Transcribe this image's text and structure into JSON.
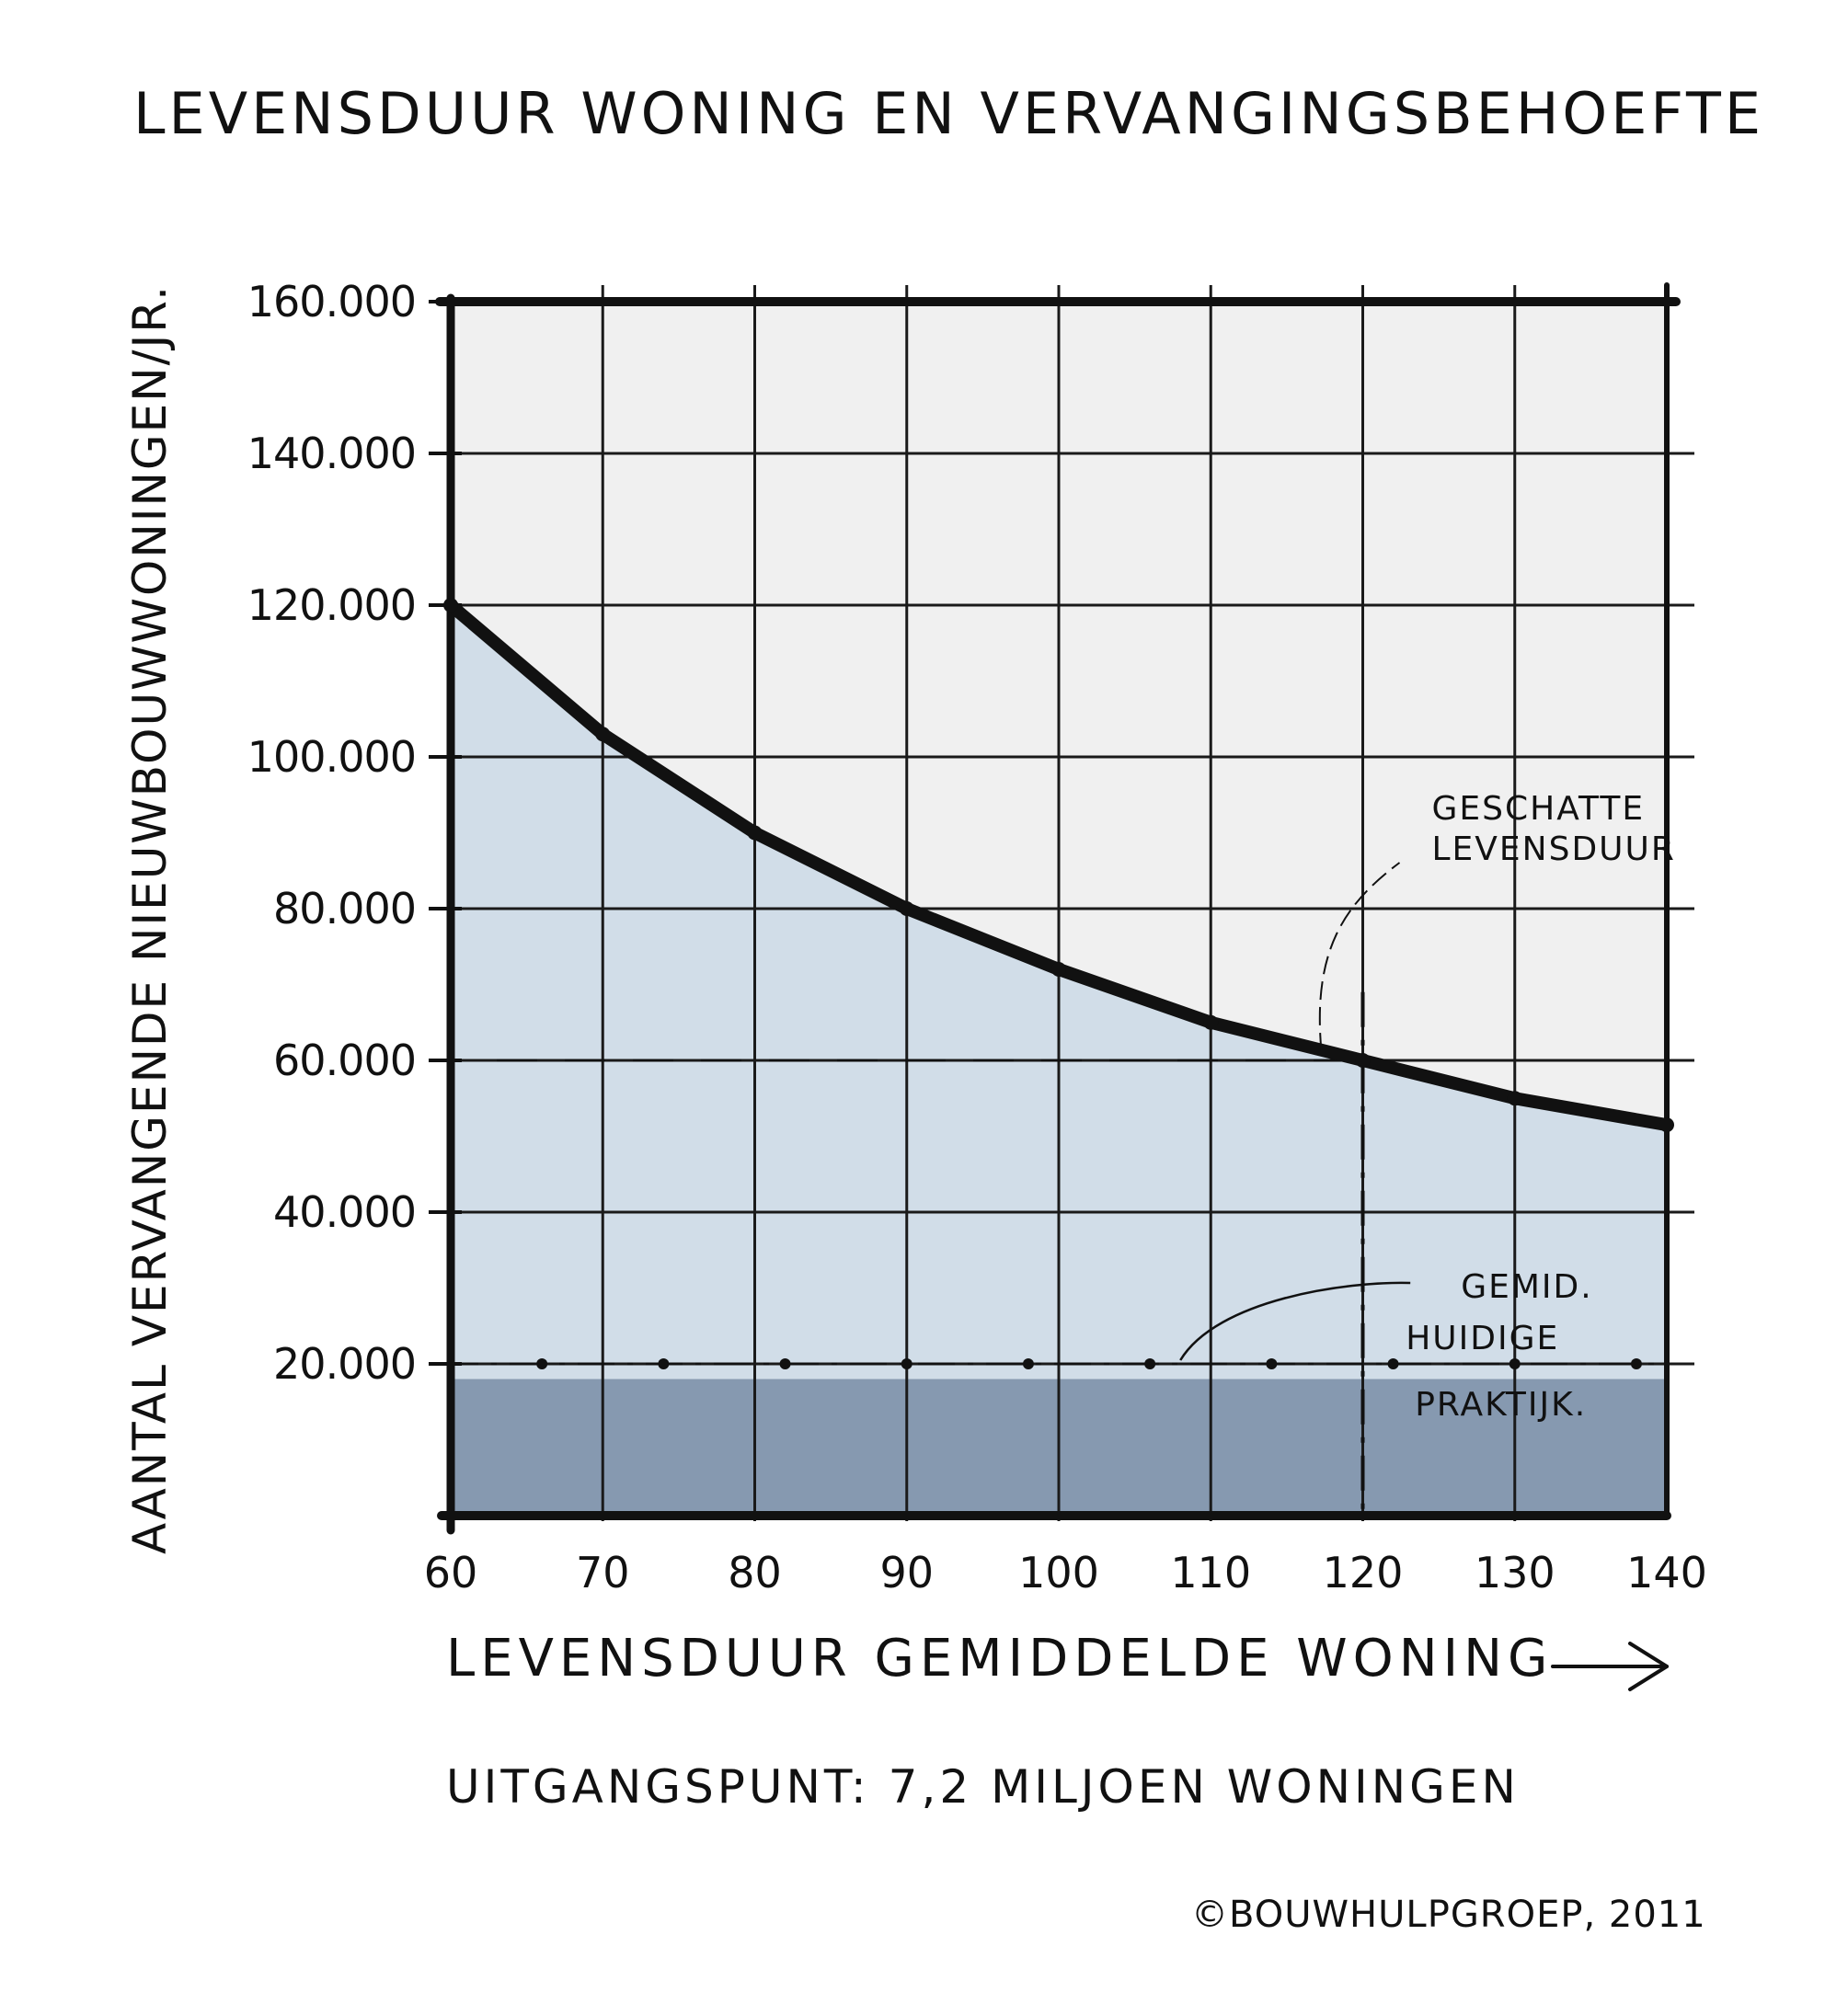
{
  "chart_data": {
    "type": "area",
    "title": "LEVENSDUUR WONING EN VERVANGINGSBEHOEFTE",
    "ylabel": "AANTAL VERVANGENDE NIEUWBOUWWONINGEN/JR.",
    "xlabel": "LEVENSDUUR GEMIDDELDE WONING",
    "x_ticks": [
      "60",
      "70",
      "80",
      "90",
      "100",
      "110",
      "120",
      "130",
      "140"
    ],
    "y_ticks": [
      "20.000",
      "40.000",
      "60.000",
      "80.000",
      "100.000",
      "120.000",
      "140.000",
      "160.000"
    ],
    "xlim": [
      60,
      140
    ],
    "ylim": [
      0,
      160000
    ],
    "grid": true,
    "series": [
      {
        "x": [
          60,
          70,
          80,
          90,
          100,
          110,
          120,
          130,
          140
        ],
        "y": [
          120000,
          103000,
          90000,
          80000,
          72000,
          65000,
          60000,
          55000,
          51500
        ]
      },
      {
        "x": [
          60,
          140
        ],
        "y": [
          18000,
          18000
        ]
      }
    ],
    "reference_lines": [
      {
        "axis": "y",
        "value": 60000,
        "style": "dashed"
      },
      {
        "axis": "y",
        "value": 20000,
        "style": "dash-dot"
      },
      {
        "axis": "x",
        "value": 120,
        "style": "dash-dot"
      }
    ],
    "annotations": [
      {
        "lines": [
          "GESCHATTE",
          "LEVENSDUUR"
        ],
        "x": 120,
        "y": 60000
      },
      {
        "lines": [
          "GEMID.",
          "HUIDIGE",
          "PRAKTIJK."
        ],
        "x": 108,
        "y": 20000
      }
    ],
    "note": "UITGANGSPUNT: 7,2 MILJOEN WONINGEN",
    "credit": "©BOUWHULPGROEP, 2011",
    "colors": {
      "background": "#f0f0f0",
      "area": "#d1dde8",
      "current_practice_band": "#8699b0",
      "line": "#111111",
      "grid": "#1a1a1a"
    }
  }
}
